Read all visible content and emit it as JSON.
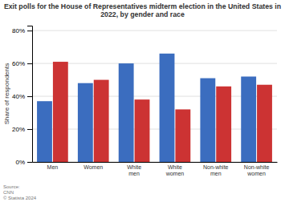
{
  "chart_data": {
    "type": "bar",
    "title": "Exit polls for the House of Representatives midterm election in the United States in\n2022, by gender and race",
    "categories": [
      "Men",
      "Women",
      "White\nmen",
      "White\nwomen",
      "Non-white\nmen",
      "Non-white\nwomen"
    ],
    "series": [
      {
        "color": "#3b6dbf",
        "values": [
          37,
          48,
          60,
          66,
          51,
          52
        ]
      },
      {
        "color": "#cc3333",
        "values": [
          61,
          50,
          38,
          32,
          46,
          47
        ]
      }
    ],
    "y_label": "Share of respondents",
    "ylim": [
      0,
      83
    ],
    "yticks": [
      {
        "value": 0,
        "label": "0%"
      },
      {
        "value": 20,
        "label": "20%"
      },
      {
        "value": 40,
        "label": "40%"
      },
      {
        "value": 60,
        "label": "60%"
      },
      {
        "value": 80,
        "label": "80%"
      }
    ],
    "grid": true,
    "annotations": [
      "Source:\nCNN\n© Statista 2024"
    ]
  }
}
